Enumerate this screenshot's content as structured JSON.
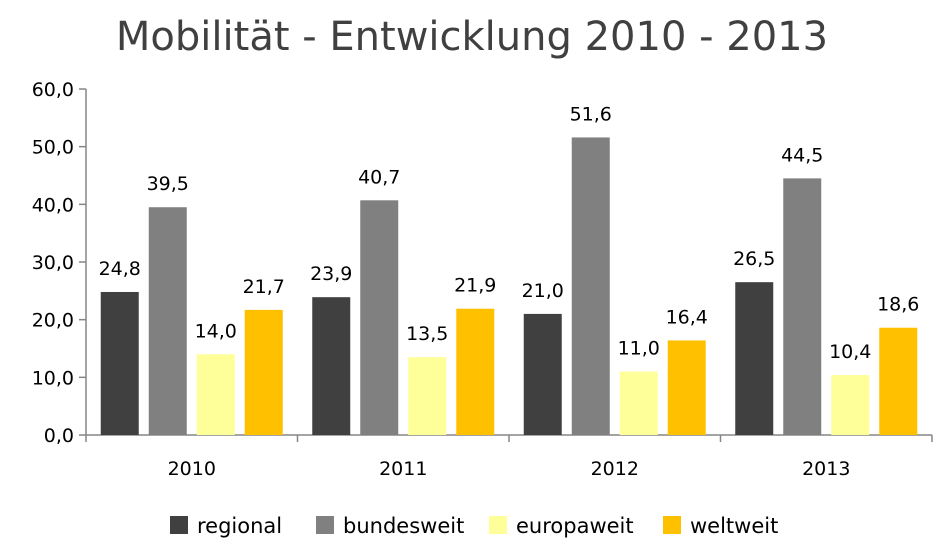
{
  "chart_data": {
    "type": "bar",
    "title": "Mobilität - Entwicklung 2010 - 2013",
    "xlabel": "",
    "ylabel": "",
    "categories": [
      "2010",
      "2011",
      "2012",
      "2013"
    ],
    "series": [
      {
        "name": "regional",
        "color": "#404040",
        "values": [
          24.8,
          23.9,
          21.0,
          26.5
        ]
      },
      {
        "name": "bundesweit",
        "color": "#808080",
        "values": [
          39.5,
          40.7,
          51.6,
          44.5
        ]
      },
      {
        "name": "europaweit",
        "color": "#ffff99",
        "values": [
          14.0,
          13.5,
          11.0,
          10.4
        ]
      },
      {
        "name": "weltweit",
        "color": "#ffc000",
        "values": [
          21.7,
          21.9,
          16.4,
          18.6
        ]
      }
    ],
    "ylim": [
      0,
      60
    ],
    "yticks": [
      "0,0",
      "10,0",
      "20,0",
      "30,0",
      "40,0",
      "50,0",
      "60,0"
    ],
    "data_labels": [
      [
        "24,8",
        "23,9",
        "21,0",
        "26,5"
      ],
      [
        "39,5",
        "40,7",
        "51,6",
        "44,5"
      ],
      [
        "14,0",
        "13,5",
        "11,0",
        "10,4"
      ],
      [
        "21,7",
        "21,9",
        "16,4",
        "18,6"
      ]
    ],
    "grid": false,
    "legend_position": "bottom"
  }
}
